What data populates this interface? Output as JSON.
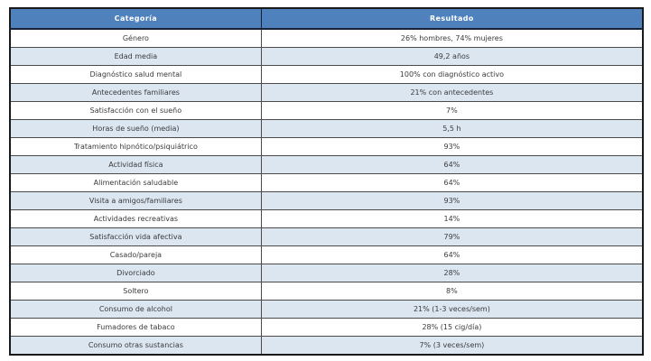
{
  "colors": {
    "header_bg": "#4f81bd",
    "header_text": "#ffffff",
    "header_border": "#152238",
    "row_bg": "#ffffff",
    "row_alt_bg": "#dce6f1",
    "body_text": "#3b3b3b",
    "cell_border": "#4a4a4a",
    "outer_border": "#1a1a1a"
  },
  "chart_data": {
    "type": "table",
    "title": "",
    "legend_position": "none",
    "columns": [
      "Categoría",
      "Resultado"
    ],
    "rows": [
      [
        "Género",
        "26% hombres, 74% mujeres"
      ],
      [
        "Edad media",
        "49,2 años"
      ],
      [
        "Diagnóstico salud mental",
        "100% con diagnóstico activo"
      ],
      [
        "Antecedentes familiares",
        "21% con antecedentes"
      ],
      [
        "Satisfacción con el sueño",
        "7%"
      ],
      [
        "Horas de sueño (media)",
        "5,5 h"
      ],
      [
        "Tratamiento hipnótico/psiquiátrico",
        "93%"
      ],
      [
        "Actividad física",
        "64%"
      ],
      [
        "Alimentación saludable",
        "64%"
      ],
      [
        "Visita a amigos/familiares",
        "93%"
      ],
      [
        "Actividades recreativas",
        "14%"
      ],
      [
        "Satisfacción vida afectiva",
        "79%"
      ],
      [
        "Casado/pareja",
        "64%"
      ],
      [
        "Divorciado",
        "28%"
      ],
      [
        "Soltero",
        "8%"
      ],
      [
        "Consumo de alcohol",
        "21% (1-3 veces/sem)"
      ],
      [
        "Fumadores de tabaco",
        "28% (15 cig/día)"
      ],
      [
        "Consumo otras sustancias",
        "7% (3 veces/sem)"
      ]
    ]
  }
}
